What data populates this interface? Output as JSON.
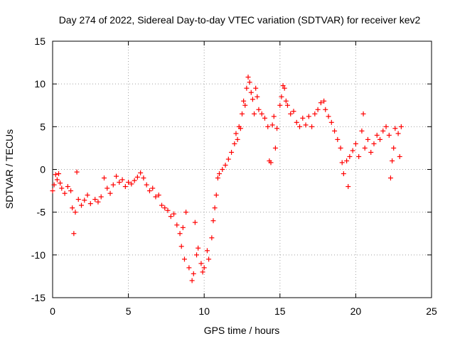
{
  "chart_data": {
    "type": "scatter",
    "title": "Day 274 of 2022, Sidereal Day-to-day VTEC variation (SDTVAR) for receiver kev2",
    "xlabel": "GPS time / hours",
    "ylabel": "SDTVAR / TECUs",
    "xlim": [
      0,
      25
    ],
    "ylim": [
      -15,
      15
    ],
    "xticks": [
      0,
      5,
      10,
      15,
      20,
      25
    ],
    "yticks": [
      -15,
      -10,
      -5,
      0,
      5,
      10,
      15
    ],
    "xtick_labels": [
      "0",
      "5",
      "10",
      "15",
      "20",
      "25"
    ],
    "ytick_labels": [
      "-15",
      "-10",
      "-5",
      "0",
      "5",
      "10",
      "15"
    ],
    "grid": true,
    "marker": "+",
    "color": "#ff0000",
    "series": [
      {
        "name": "SDTVAR",
        "points": [
          [
            0.0,
            -2.5
          ],
          [
            0.1,
            -1.8
          ],
          [
            0.2,
            -0.6
          ],
          [
            0.3,
            -1.2
          ],
          [
            0.4,
            -0.5
          ],
          [
            0.5,
            -1.6
          ],
          [
            0.6,
            -2.2
          ],
          [
            0.8,
            -2.8
          ],
          [
            1.0,
            -2.0
          ],
          [
            1.2,
            -2.5
          ],
          [
            1.3,
            -4.5
          ],
          [
            1.4,
            -7.5
          ],
          [
            1.5,
            -5.0
          ],
          [
            1.6,
            -0.3
          ],
          [
            1.7,
            -3.5
          ],
          [
            1.9,
            -4.2
          ],
          [
            2.1,
            -3.6
          ],
          [
            2.3,
            -3.0
          ],
          [
            2.5,
            -4.0
          ],
          [
            2.8,
            -3.5
          ],
          [
            3.0,
            -3.8
          ],
          [
            3.2,
            -3.2
          ],
          [
            3.4,
            -1.0
          ],
          [
            3.6,
            -2.2
          ],
          [
            3.8,
            -2.8
          ],
          [
            4.0,
            -1.8
          ],
          [
            4.2,
            -0.8
          ],
          [
            4.4,
            -1.5
          ],
          [
            4.6,
            -1.2
          ],
          [
            4.8,
            -2.0
          ],
          [
            5.0,
            -1.5
          ],
          [
            5.2,
            -1.7
          ],
          [
            5.4,
            -1.3
          ],
          [
            5.6,
            -0.9
          ],
          [
            5.8,
            -0.4
          ],
          [
            6.0,
            -1.0
          ],
          [
            6.2,
            -1.8
          ],
          [
            6.4,
            -2.5
          ],
          [
            6.6,
            -2.2
          ],
          [
            6.8,
            -3.2
          ],
          [
            7.0,
            -3.0
          ],
          [
            7.2,
            -4.2
          ],
          [
            7.4,
            -4.5
          ],
          [
            7.6,
            -4.8
          ],
          [
            7.8,
            -5.5
          ],
          [
            8.0,
            -5.2
          ],
          [
            8.2,
            -6.5
          ],
          [
            8.4,
            -7.5
          ],
          [
            8.6,
            -6.8
          ],
          [
            8.8,
            -5.0
          ],
          [
            8.5,
            -9.0
          ],
          [
            8.7,
            -10.5
          ],
          [
            9.0,
            -11.5
          ],
          [
            9.2,
            -13.0
          ],
          [
            9.3,
            -12.2
          ],
          [
            9.4,
            -6.2
          ],
          [
            9.5,
            -10.0
          ],
          [
            9.6,
            -9.2
          ],
          [
            9.8,
            -11.0
          ],
          [
            9.9,
            -12.0
          ],
          [
            10.0,
            -11.5
          ],
          [
            10.2,
            -9.5
          ],
          [
            10.3,
            -10.5
          ],
          [
            10.5,
            -8.0
          ],
          [
            10.6,
            -6.0
          ],
          [
            10.7,
            -4.5
          ],
          [
            10.8,
            -3.0
          ],
          [
            10.9,
            -1.0
          ],
          [
            11.0,
            -0.5
          ],
          [
            11.2,
            0.0
          ],
          [
            11.4,
            0.5
          ],
          [
            11.6,
            1.2
          ],
          [
            11.8,
            2.0
          ],
          [
            12.0,
            3.0
          ],
          [
            12.1,
            4.2
          ],
          [
            12.2,
            3.5
          ],
          [
            12.3,
            5.0
          ],
          [
            12.4,
            4.8
          ],
          [
            12.5,
            6.5
          ],
          [
            12.6,
            8.0
          ],
          [
            12.7,
            7.5
          ],
          [
            12.8,
            9.5
          ],
          [
            12.9,
            10.8
          ],
          [
            13.0,
            10.2
          ],
          [
            13.1,
            9.0
          ],
          [
            13.2,
            8.2
          ],
          [
            13.3,
            6.5
          ],
          [
            13.4,
            9.5
          ],
          [
            13.5,
            8.5
          ],
          [
            13.6,
            7.0
          ],
          [
            13.8,
            6.5
          ],
          [
            14.0,
            6.0
          ],
          [
            14.2,
            5.0
          ],
          [
            14.3,
            1.0
          ],
          [
            14.4,
            0.8
          ],
          [
            14.5,
            5.2
          ],
          [
            14.6,
            6.2
          ],
          [
            14.7,
            2.5
          ],
          [
            14.8,
            4.8
          ],
          [
            15.0,
            7.5
          ],
          [
            15.1,
            8.5
          ],
          [
            15.2,
            9.8
          ],
          [
            15.3,
            9.5
          ],
          [
            15.4,
            8.0
          ],
          [
            15.5,
            7.5
          ],
          [
            15.7,
            6.5
          ],
          [
            15.9,
            6.8
          ],
          [
            16.1,
            5.5
          ],
          [
            16.3,
            5.0
          ],
          [
            16.5,
            6.0
          ],
          [
            16.7,
            5.2
          ],
          [
            16.9,
            6.2
          ],
          [
            17.1,
            5.0
          ],
          [
            17.3,
            6.5
          ],
          [
            17.5,
            7.0
          ],
          [
            17.7,
            7.8
          ],
          [
            17.9,
            8.0
          ],
          [
            18.0,
            7.0
          ],
          [
            18.2,
            6.2
          ],
          [
            18.4,
            5.5
          ],
          [
            18.6,
            4.5
          ],
          [
            18.8,
            3.5
          ],
          [
            19.0,
            2.5
          ],
          [
            19.1,
            0.8
          ],
          [
            19.2,
            -0.5
          ],
          [
            19.4,
            1.0
          ],
          [
            19.5,
            -2.0
          ],
          [
            19.6,
            1.5
          ],
          [
            19.8,
            2.2
          ],
          [
            20.0,
            3.0
          ],
          [
            20.2,
            1.5
          ],
          [
            20.4,
            4.5
          ],
          [
            20.5,
            6.5
          ],
          [
            20.6,
            2.5
          ],
          [
            20.8,
            3.5
          ],
          [
            21.0,
            2.0
          ],
          [
            21.2,
            3.0
          ],
          [
            21.4,
            4.0
          ],
          [
            21.6,
            3.5
          ],
          [
            21.8,
            4.5
          ],
          [
            22.0,
            5.0
          ],
          [
            22.2,
            4.0
          ],
          [
            22.3,
            -1.0
          ],
          [
            22.4,
            1.0
          ],
          [
            22.5,
            2.5
          ],
          [
            22.6,
            4.8
          ],
          [
            22.8,
            4.2
          ],
          [
            22.9,
            1.5
          ],
          [
            23.0,
            5.0
          ]
        ]
      }
    ]
  }
}
